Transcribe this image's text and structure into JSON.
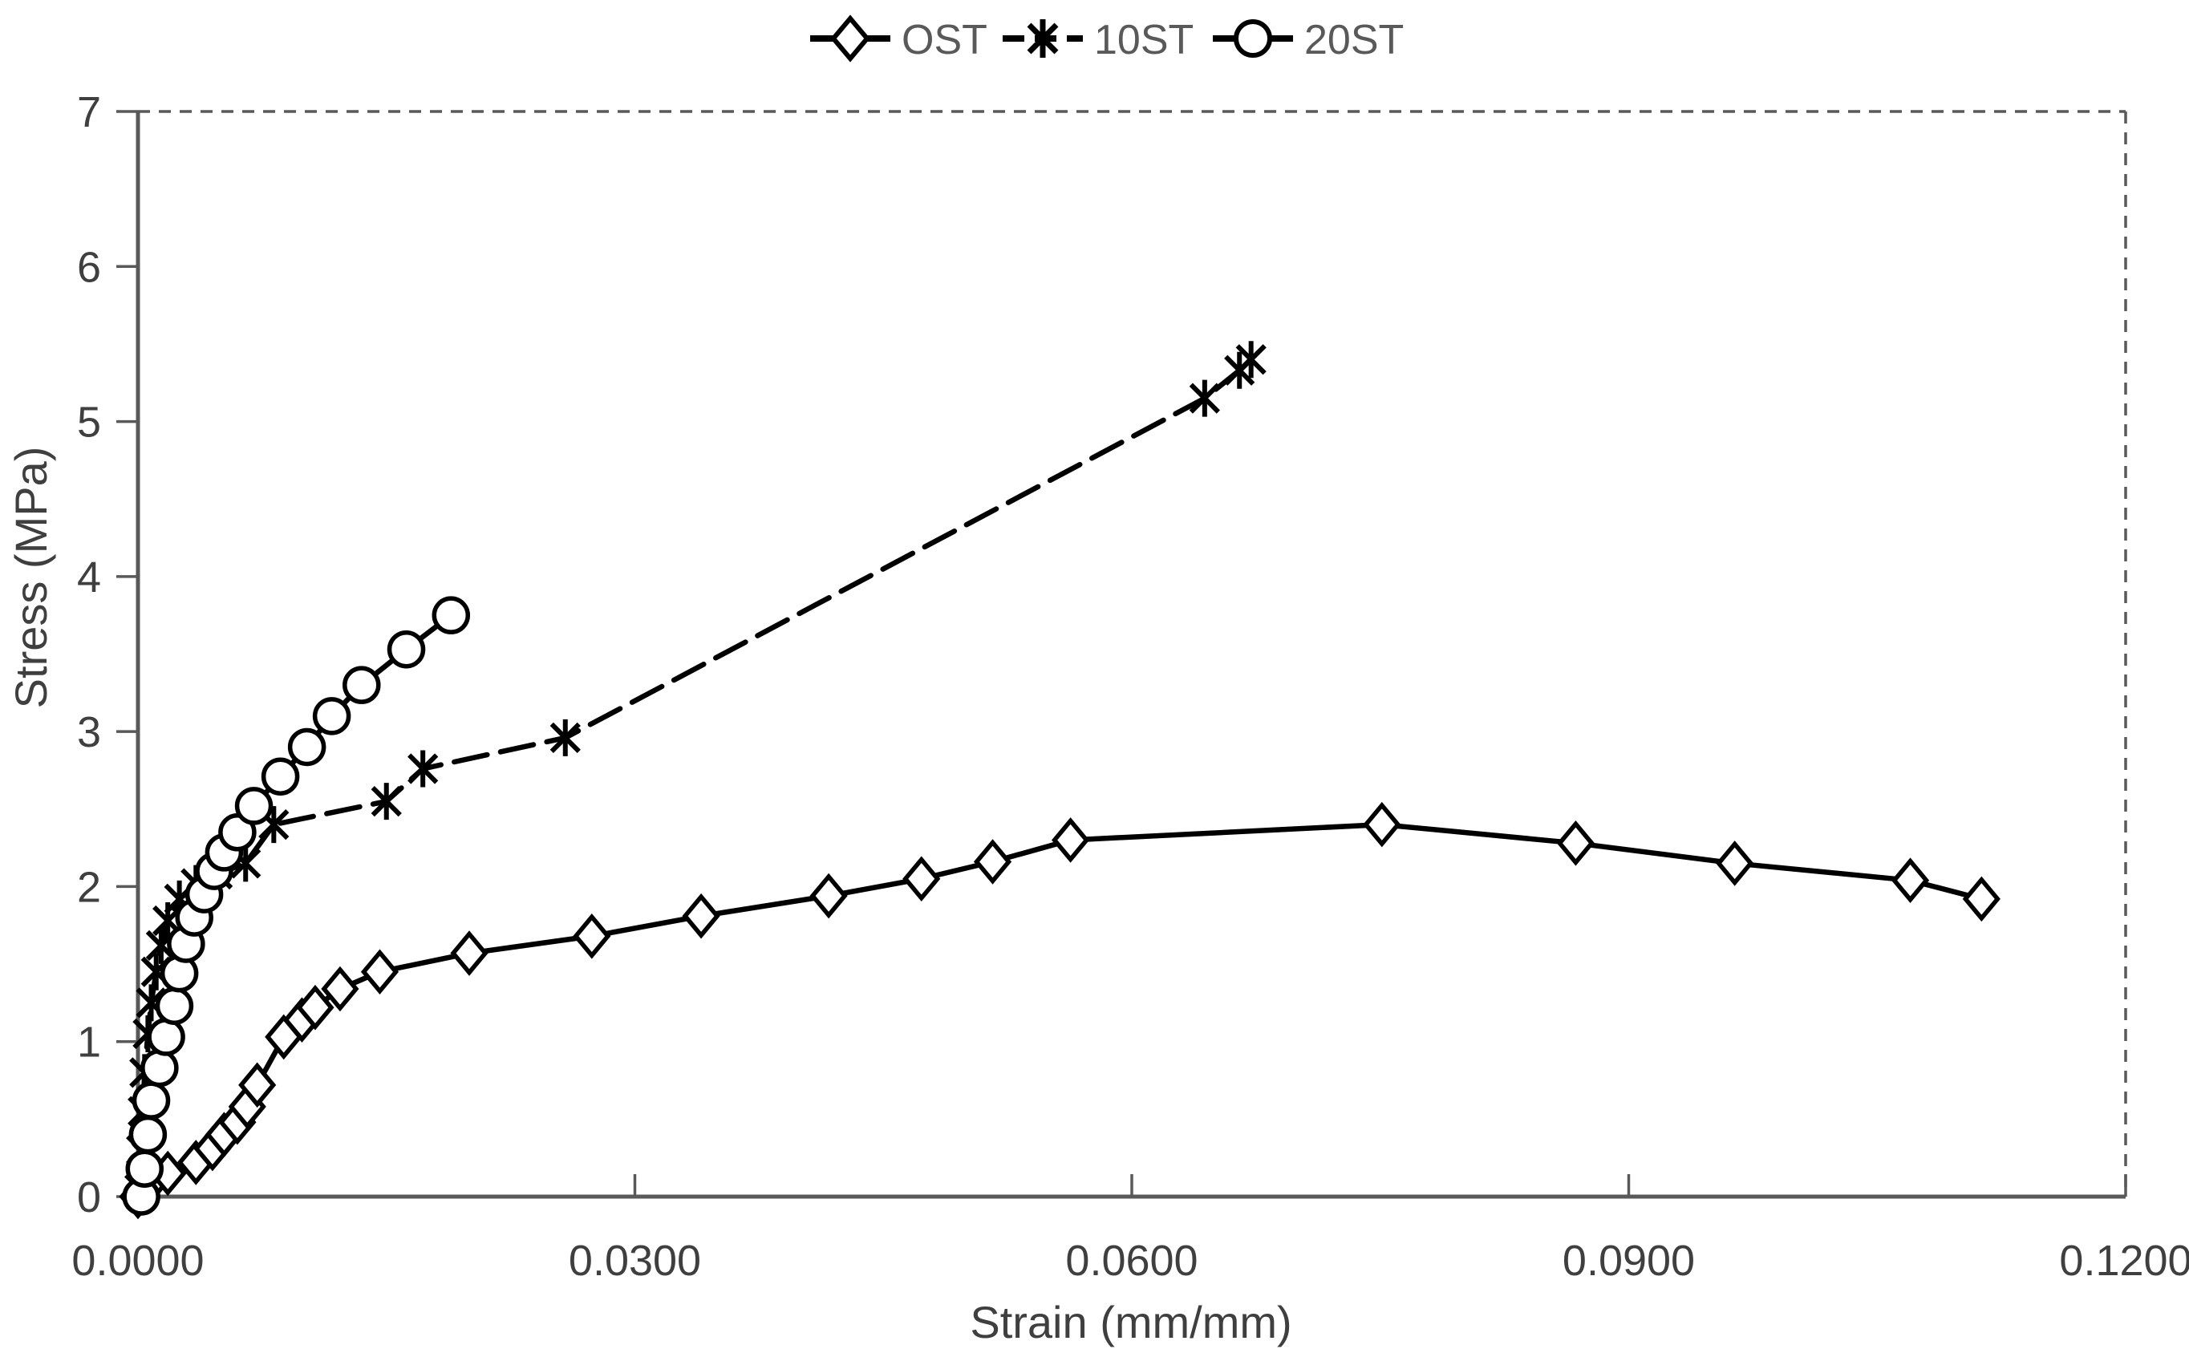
{
  "figure": {
    "kind": "stress-strain line chart",
    "background_color": "#ffffff",
    "series_color": "#000000",
    "axis_color": "#595959",
    "text_color": "#3f3f3f",
    "legend_text_color": "#595959"
  },
  "legend": {
    "position": "top-center",
    "items": [
      {
        "label": "OST",
        "marker": "diamond",
        "line_style": "solid"
      },
      {
        "label": "10ST",
        "marker": "asterisk",
        "line_style": "dashed"
      },
      {
        "label": "20ST",
        "marker": "circle",
        "line_style": "solid"
      }
    ]
  },
  "chart_data": {
    "type": "line",
    "title": "",
    "xlabel": "Strain (mm/mm)",
    "ylabel": "Stress (MPa)",
    "xlim": [
      0,
      0.12
    ],
    "ylim": [
      0,
      7
    ],
    "grid": false,
    "plot_border": {
      "top": "dashed",
      "right": "dashed",
      "left": "solid",
      "bottom": "solid"
    },
    "x_ticks": {
      "values": [
        0,
        0.03,
        0.06,
        0.09,
        0.12
      ],
      "labels": [
        "0.0000",
        "0.0300",
        "0.0600",
        "0.0900",
        "0.1200"
      ]
    },
    "y_ticks": {
      "values": [
        0,
        1,
        2,
        3,
        4,
        5,
        6,
        7
      ],
      "labels": [
        "0",
        "1",
        "2",
        "3",
        "4",
        "5",
        "6",
        "7"
      ]
    },
    "series": [
      {
        "name": "OST",
        "marker": "diamond",
        "line_style": "solid",
        "points": [
          [
            0.0,
            0.0
          ],
          [
            0.0008,
            0.1
          ],
          [
            0.0018,
            0.15
          ],
          [
            0.0035,
            0.22
          ],
          [
            0.0045,
            0.31
          ],
          [
            0.0052,
            0.4
          ],
          [
            0.006,
            0.48
          ],
          [
            0.0066,
            0.58
          ],
          [
            0.0072,
            0.72
          ],
          [
            0.0088,
            1.03
          ],
          [
            0.0099,
            1.14
          ],
          [
            0.0107,
            1.22
          ],
          [
            0.0122,
            1.34
          ],
          [
            0.0146,
            1.45
          ],
          [
            0.02,
            1.57
          ],
          [
            0.0274,
            1.68
          ],
          [
            0.034,
            1.81
          ],
          [
            0.0417,
            1.94
          ],
          [
            0.0473,
            2.05
          ],
          [
            0.0516,
            2.16
          ],
          [
            0.0563,
            2.3
          ],
          [
            0.0751,
            2.4
          ],
          [
            0.0868,
            2.28
          ],
          [
            0.0964,
            2.15
          ],
          [
            0.107,
            2.04
          ],
          [
            0.1113,
            1.92
          ]
        ]
      },
      {
        "name": "10ST",
        "marker": "asterisk",
        "line_style": "dashed",
        "points": [
          [
            0.0001,
            0.05
          ],
          [
            0.0002,
            0.3
          ],
          [
            0.0003,
            0.55
          ],
          [
            0.0004,
            0.8
          ],
          [
            0.0006,
            1.05
          ],
          [
            0.0008,
            1.25
          ],
          [
            0.0011,
            1.45
          ],
          [
            0.0014,
            1.62
          ],
          [
            0.0018,
            1.78
          ],
          [
            0.0025,
            1.92
          ],
          [
            0.0035,
            2.02
          ],
          [
            0.0048,
            2.08
          ],
          [
            0.0065,
            2.15
          ],
          [
            0.0082,
            2.4
          ],
          [
            0.015,
            2.55
          ],
          [
            0.0172,
            2.76
          ],
          [
            0.0258,
            2.96
          ],
          [
            0.0644,
            5.15
          ],
          [
            0.0665,
            5.33
          ],
          [
            0.0672,
            5.4
          ]
        ]
      },
      {
        "name": "20ST",
        "marker": "circle",
        "line_style": "solid",
        "points": [
          [
            0.0002,
            0.0
          ],
          [
            0.0004,
            0.18
          ],
          [
            0.0006,
            0.4
          ],
          [
            0.0008,
            0.62
          ],
          [
            0.0013,
            0.83
          ],
          [
            0.0017,
            1.03
          ],
          [
            0.0022,
            1.23
          ],
          [
            0.0025,
            1.44
          ],
          [
            0.0029,
            1.63
          ],
          [
            0.0034,
            1.8
          ],
          [
            0.004,
            1.95
          ],
          [
            0.0046,
            2.1
          ],
          [
            0.0052,
            2.22
          ],
          [
            0.006,
            2.35
          ],
          [
            0.007,
            2.52
          ],
          [
            0.0086,
            2.71
          ],
          [
            0.0102,
            2.9
          ],
          [
            0.0117,
            3.1
          ],
          [
            0.0135,
            3.3
          ],
          [
            0.0162,
            3.53
          ],
          [
            0.0189,
            3.75
          ]
        ]
      }
    ]
  }
}
